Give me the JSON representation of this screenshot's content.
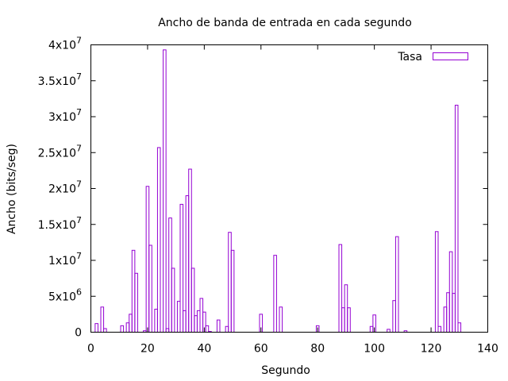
{
  "chart_data": {
    "type": "bar",
    "title": "Ancho de banda de entrada en cada segundo",
    "xlabel": "Segundo",
    "ylabel": "Ancho (bits/seg)",
    "xlim": [
      0,
      140
    ],
    "ylim": [
      0,
      40000000
    ],
    "xticks": [
      0,
      20,
      40,
      60,
      80,
      100,
      120,
      140
    ],
    "xtick_labels": [
      "0",
      "20",
      "40",
      "60",
      "80",
      "100",
      "120",
      "140"
    ],
    "yticks": [
      {
        "value": 0,
        "mantissa": "0",
        "exponent": ""
      },
      {
        "value": 5000000,
        "mantissa": "5x10",
        "exponent": "6"
      },
      {
        "value": 10000000,
        "mantissa": "1x10",
        "exponent": "7"
      },
      {
        "value": 15000000,
        "mantissa": "1.5x10",
        "exponent": "7"
      },
      {
        "value": 20000000,
        "mantissa": "2x10",
        "exponent": "7"
      },
      {
        "value": 25000000,
        "mantissa": "2.5x10",
        "exponent": "7"
      },
      {
        "value": 30000000,
        "mantissa": "3x10",
        "exponent": "7"
      },
      {
        "value": 35000000,
        "mantissa": "3.5x10",
        "exponent": "7"
      },
      {
        "value": 40000000,
        "mantissa": "4x10",
        "exponent": "7"
      }
    ],
    "legend_position": "top-right",
    "series": [
      {
        "name": "Tasa",
        "color": "#9400d3",
        "x": [
          2,
          4,
          5,
          11,
          13,
          14,
          15,
          16,
          19,
          20,
          21,
          23,
          24,
          26,
          27,
          28,
          29,
          31,
          32,
          33,
          34,
          35,
          36,
          37,
          38,
          39,
          40,
          41,
          42,
          45,
          48,
          49,
          50,
          60,
          65,
          67,
          80,
          88,
          89,
          90,
          91,
          99,
          100,
          105,
          107,
          108,
          111,
          122,
          123,
          125,
          126,
          127,
          128,
          129,
          130
        ],
        "values": [
          1200000,
          3500000,
          500000,
          900000,
          1300000,
          2500000,
          11400000,
          8200000,
          200000,
          20300000,
          12100000,
          3200000,
          25700000,
          39300000,
          500000,
          15900000,
          8900000,
          4300000,
          17800000,
          3000000,
          19000000,
          22700000,
          8900000,
          2300000,
          3000000,
          4700000,
          2800000,
          900000,
          100000,
          1700000,
          800000,
          13900000,
          11400000,
          2500000,
          10700000,
          3500000,
          900000,
          12200000,
          3400000,
          6600000,
          3400000,
          800000,
          2400000,
          400000,
          4400000,
          13300000,
          200000,
          14000000,
          800000,
          3500000,
          5500000,
          11200000,
          5400000,
          31600000,
          1300000
        ]
      }
    ]
  }
}
